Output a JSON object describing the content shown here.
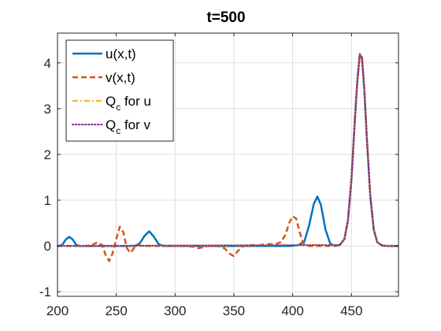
{
  "chart_data": {
    "type": "line",
    "title": "t=500",
    "xlabel": "",
    "ylabel": "",
    "xlim": [
      200,
      490
    ],
    "ylim": [
      -1.1,
      4.65
    ],
    "xticks": [
      "200",
      "250",
      "300",
      "350",
      "400",
      "450"
    ],
    "yticks": [
      "-1",
      "0",
      "1",
      "2",
      "3",
      "4"
    ],
    "grid": true,
    "legend_position": "top-left",
    "series": [
      {
        "name": "u(x,t)",
        "name_main": "u(x,t)",
        "name_sub": "",
        "name_rest": "",
        "color": "#0072bd",
        "style": "solid",
        "x": [
          200,
          204,
          207,
          210,
          213,
          216,
          219,
          230,
          250,
          266,
          270,
          274,
          278,
          282,
          286,
          290,
          300,
          320,
          340,
          360,
          380,
          398,
          405,
          410,
          414,
          418,
          421,
          424,
          428,
          432,
          436,
          440,
          444,
          447,
          450,
          453,
          455,
          457,
          459,
          461,
          463,
          466,
          469,
          472,
          476,
          480,
          490
        ],
        "y": [
          0,
          0.02,
          0.14,
          0.2,
          0.14,
          0.02,
          0,
          0,
          0,
          0,
          0.06,
          0.22,
          0.32,
          0.2,
          0.04,
          0,
          0,
          0,
          0,
          0,
          0,
          0,
          0.02,
          0.1,
          0.45,
          0.92,
          1.08,
          0.9,
          0.35,
          0.05,
          0,
          0.02,
          0.15,
          0.55,
          1.45,
          2.8,
          3.6,
          4.15,
          4.1,
          3.4,
          2.4,
          1.1,
          0.35,
          0.08,
          0.01,
          0,
          0
        ]
      },
      {
        "name": "v(x,t)",
        "name_main": "v(x,t)",
        "name_sub": "",
        "name_rest": "",
        "color": "#d95319",
        "style": "dashed",
        "x": [
          200,
          225,
          230,
          234,
          238,
          241,
          244,
          247,
          250,
          253,
          256,
          259,
          262,
          265,
          268,
          272,
          285,
          300,
          310,
          316,
          320,
          326,
          335,
          342,
          347,
          350,
          353,
          358,
          365,
          370,
          375,
          380,
          385,
          390,
          394,
          397,
          400,
          403,
          406,
          409,
          412,
          416,
          420,
          430,
          440,
          444,
          447,
          450,
          453,
          455,
          457,
          459,
          461,
          463,
          466,
          469,
          472,
          476,
          480,
          490
        ],
        "y": [
          0,
          0,
          0.03,
          0.08,
          0.02,
          -0.2,
          -0.33,
          -0.15,
          0.15,
          0.42,
          0.3,
          -0.05,
          -0.15,
          -0.05,
          0.02,
          0,
          0,
          0,
          0,
          -0.02,
          -0.05,
          -0.01,
          0.01,
          -0.05,
          -0.18,
          -0.22,
          -0.12,
          0,
          0.02,
          0.01,
          0.03,
          0.04,
          0.04,
          0.08,
          0.25,
          0.5,
          0.65,
          0.6,
          0.3,
          0.06,
          0,
          0,
          0,
          0,
          0.02,
          0.15,
          0.55,
          1.45,
          2.8,
          3.6,
          4.15,
          4.1,
          3.4,
          2.4,
          1.1,
          0.35,
          0.08,
          0.01,
          0,
          0
        ]
      },
      {
        "name": "Qc for u",
        "name_main": "Q",
        "name_sub": "c",
        "name_rest": " for u",
        "color": "#edb120",
        "style": "dashdot",
        "x": [
          200,
          440,
          444,
          447,
          450,
          453,
          455,
          457,
          459,
          461,
          463,
          466,
          469,
          472,
          476,
          480,
          490
        ],
        "y": [
          0,
          0.02,
          0.15,
          0.55,
          1.45,
          2.8,
          3.6,
          4.18,
          4.12,
          3.4,
          2.4,
          1.1,
          0.35,
          0.08,
          0.01,
          0,
          0
        ]
      },
      {
        "name": "Qc for v",
        "name_main": "Q",
        "name_sub": "c",
        "name_rest": " for v",
        "color": "#7e2f8e",
        "style": "dotted",
        "x": [
          200,
          440,
          444,
          447,
          450,
          453,
          455,
          457,
          459,
          461,
          463,
          466,
          469,
          472,
          476,
          480,
          490
        ],
        "y": [
          0,
          0.02,
          0.15,
          0.55,
          1.45,
          2.8,
          3.6,
          4.2,
          4.12,
          3.4,
          2.4,
          1.1,
          0.35,
          0.08,
          0.01,
          0,
          0
        ]
      }
    ]
  }
}
